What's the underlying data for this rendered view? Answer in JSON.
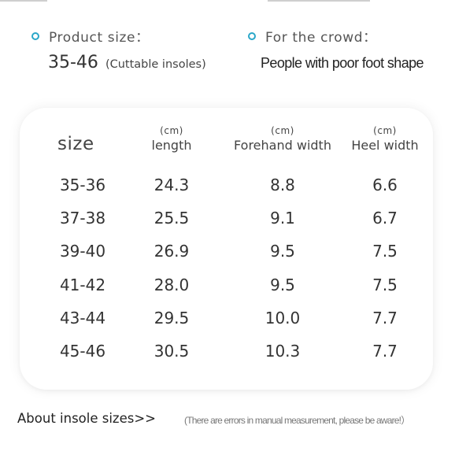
{
  "product": {
    "label": "Product size：",
    "size_range": "35-46",
    "size_note": "(Cuttable insoles)"
  },
  "crowd": {
    "label": "For the crowd：",
    "value": "People with poor foot shape"
  },
  "table": {
    "size_header": "size",
    "columns": [
      {
        "unit": "(cm)",
        "name": "length"
      },
      {
        "unit": "(cm)",
        "name": "Forehand width"
      },
      {
        "unit": "(cm)",
        "name": "Heel width"
      }
    ],
    "rows": [
      {
        "size": "35-36",
        "length": "24.3",
        "forehand": "8.8",
        "heel": "6.6"
      },
      {
        "size": "37-38",
        "length": "25.5",
        "forehand": "9.1",
        "heel": "6.7"
      },
      {
        "size": "39-40",
        "length": "26.9",
        "forehand": "9.5",
        "heel": "7.5"
      },
      {
        "size": "41-42",
        "length": "28.0",
        "forehand": "9.5",
        "heel": "7.5"
      },
      {
        "size": "43-44",
        "length": "29.5",
        "forehand": "10.0",
        "heel": "7.7"
      },
      {
        "size": "45-46",
        "length": "30.5",
        "forehand": "10.3",
        "heel": "7.7"
      }
    ]
  },
  "footer": {
    "link": "About insole sizes>>",
    "note": "(There are errors in manual measurement, please be aware!）"
  },
  "colors": {
    "accent_ring": "#2aa7c9"
  }
}
